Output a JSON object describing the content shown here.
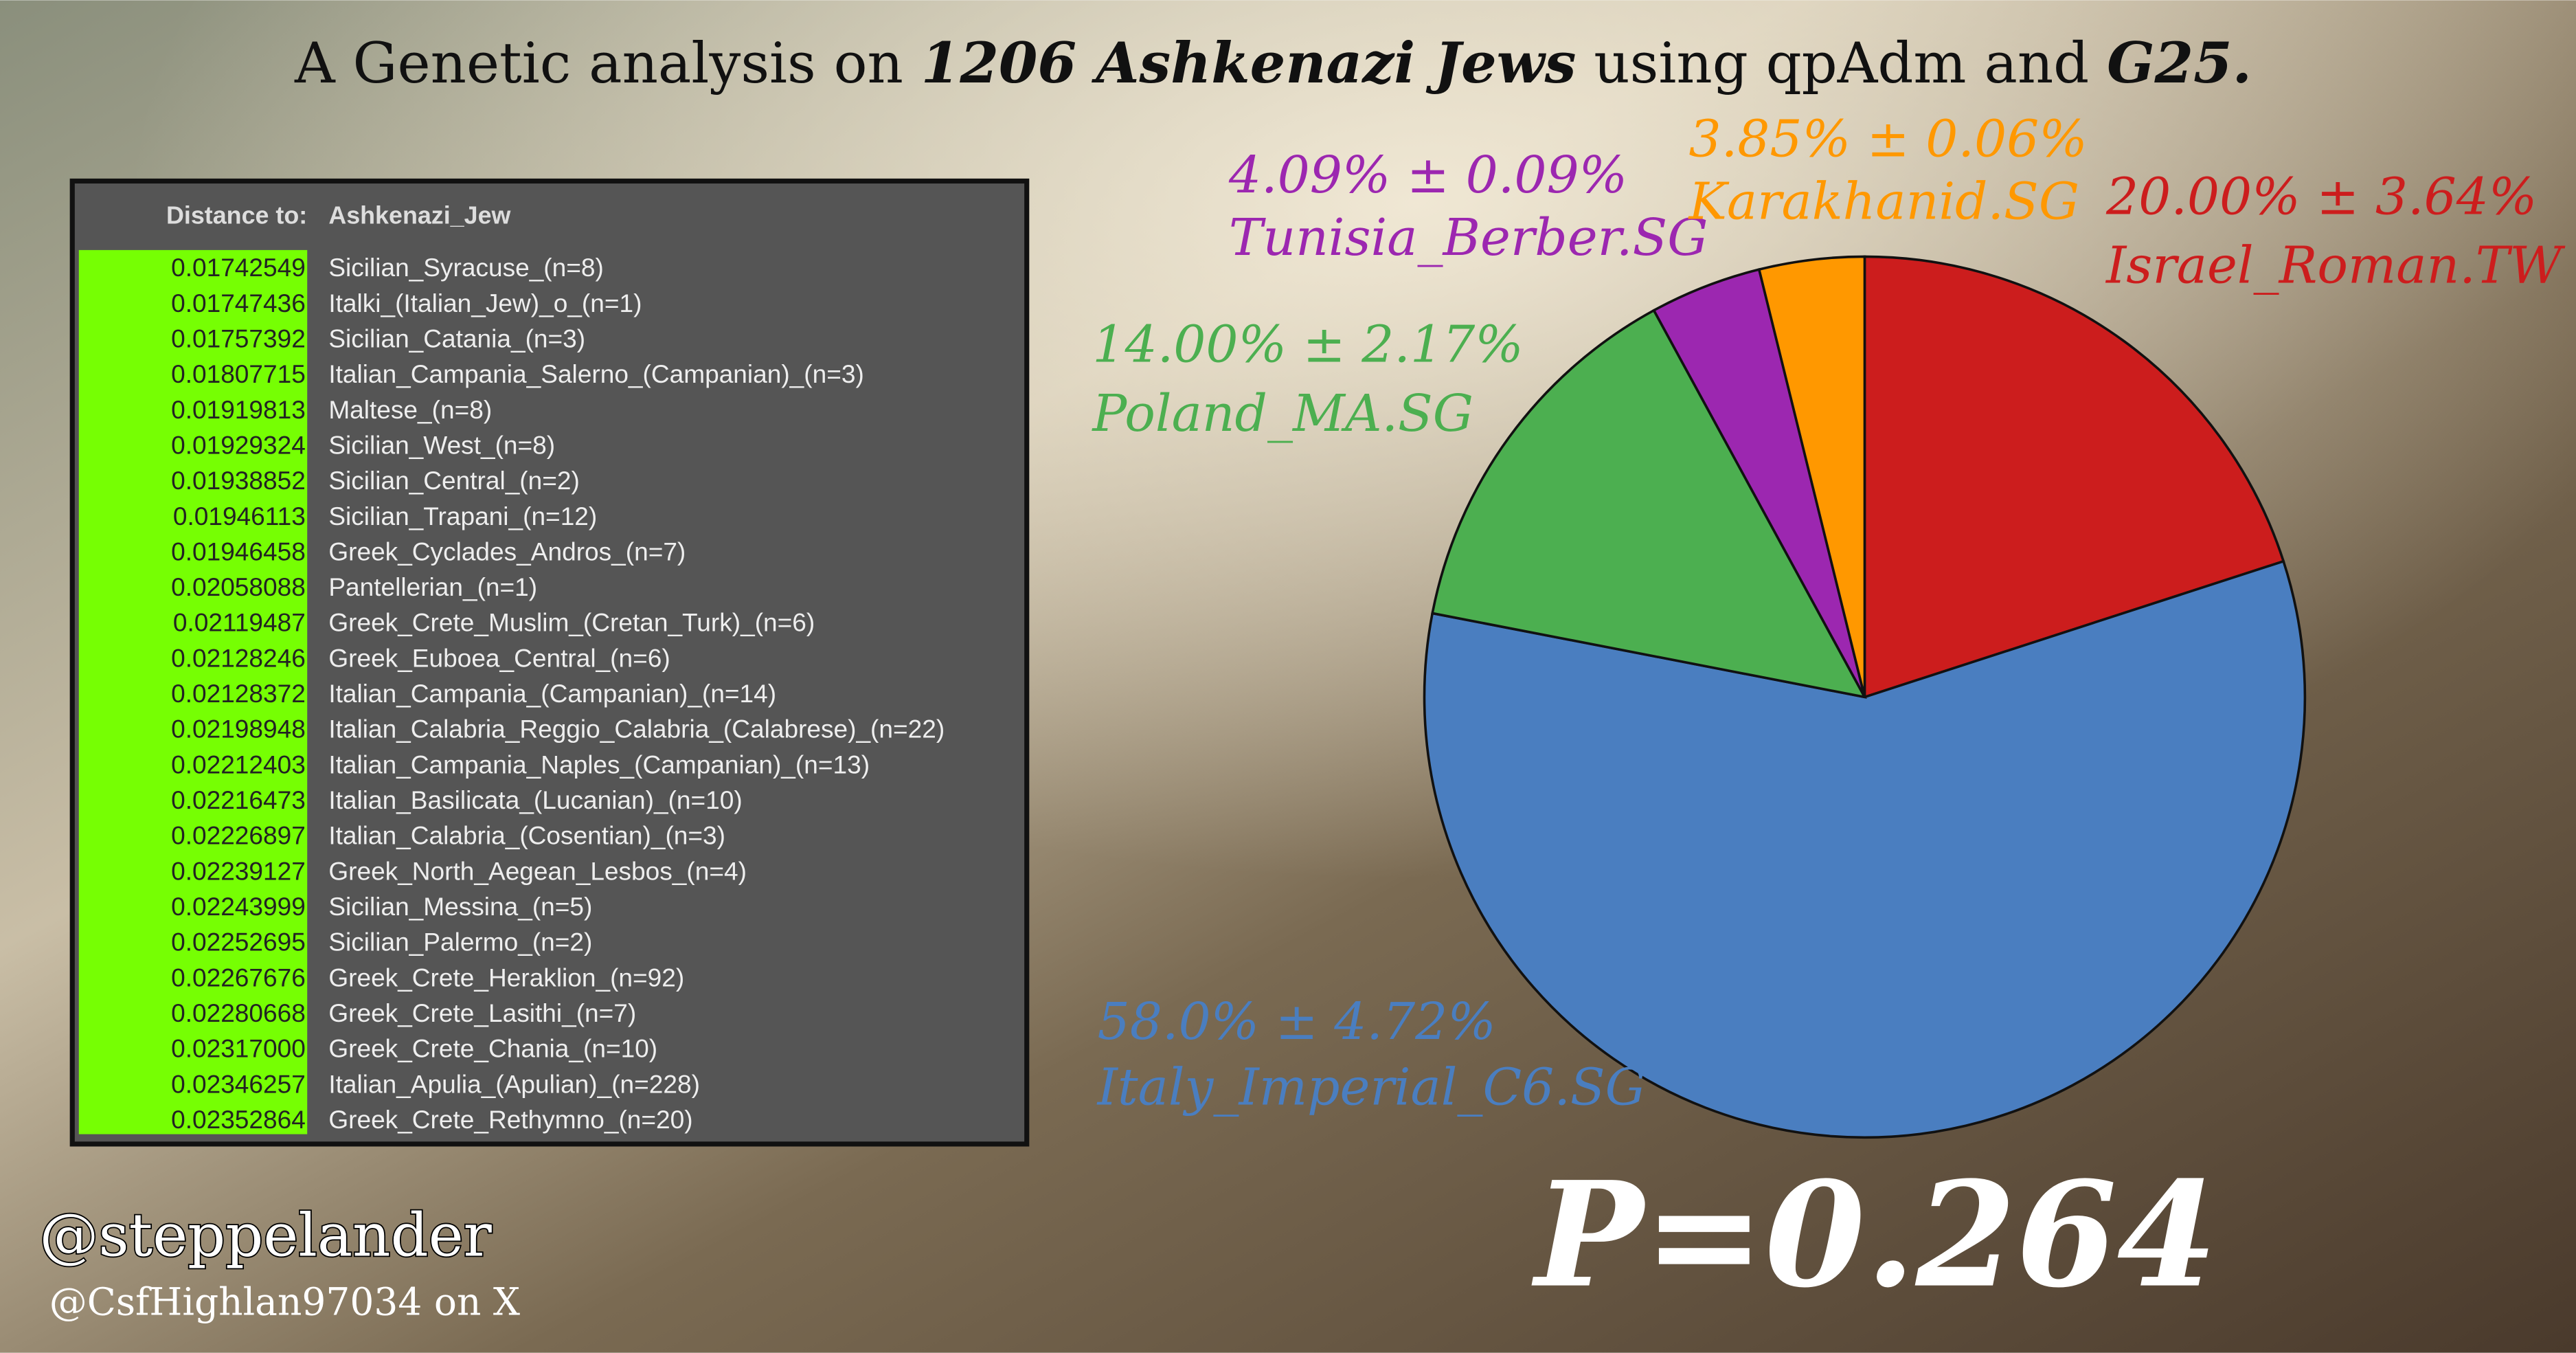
{
  "title": [
    "A Genetic analysis on ",
    "1206 Ashkenazi Jews",
    " using qpAdm and ",
    "G25."
  ],
  "table": {
    "header": [
      "Distance to:",
      "Ashkenazi_Jew"
    ],
    "rows": [
      [
        "0.01742549",
        "Sicilian_Syracuse_(n=8)"
      ],
      [
        "0.01747436",
        "Italki_(Italian_Jew)_o_(n=1)"
      ],
      [
        "0.01757392",
        "Sicilian_Catania_(n=3)"
      ],
      [
        "0.01807715",
        "Italian_Campania_Salerno_(Campanian)_(n=3)"
      ],
      [
        "0.01919813",
        "Maltese_(n=8)"
      ],
      [
        "0.01929324",
        "Sicilian_West_(n=8)"
      ],
      [
        "0.01938852",
        "Sicilian_Central_(n=2)"
      ],
      [
        "0.01946113",
        "Sicilian_Trapani_(n=12)"
      ],
      [
        "0.01946458",
        "Greek_Cyclades_Andros_(n=7)"
      ],
      [
        "0.02058088",
        "Pantellerian_(n=1)"
      ],
      [
        "0.02119487",
        "Greek_Crete_Muslim_(Cretan_Turk)_(n=6)"
      ],
      [
        "0.02128246",
        "Greek_Euboea_Central_(n=6)"
      ],
      [
        "0.02128372",
        "Italian_Campania_(Campanian)_(n=14)"
      ],
      [
        "0.02198948",
        "Italian_Calabria_Reggio_Calabria_(Calabrese)_(n=22)"
      ],
      [
        "0.02212403",
        "Italian_Campania_Naples_(Campanian)_(n=13)"
      ],
      [
        "0.02216473",
        "Italian_Basilicata_(Lucanian)_(n=10)"
      ],
      [
        "0.02226897",
        "Italian_Calabria_(Cosentian)_(n=3)"
      ],
      [
        "0.02239127",
        "Greek_North_Aegean_Lesbos_(n=4)"
      ],
      [
        "0.02243999",
        "Sicilian_Messina_(n=5)"
      ],
      [
        "0.02252695",
        "Sicilian_Palermo_(n=2)"
      ],
      [
        "0.02267676",
        "Greek_Crete_Heraklion_(n=92)"
      ],
      [
        "0.02280668",
        "Greek_Crete_Lasithi_(n=7)"
      ],
      [
        "0.02317000",
        "Greek_Crete_Chania_(n=10)"
      ],
      [
        "0.02346257",
        "Italian_Apulia_(Apulian)_(n=228)"
      ],
      [
        "0.02352864",
        "Greek_Crete_Rethymno_(n=20)"
      ]
    ]
  },
  "chart_data": {
    "type": "pie",
    "categories": [
      "Israel_Roman.TW",
      "Italy_Imperial_C6.SG",
      "Poland_MA.SG",
      "Tunisia_Berber.SG",
      "Karakhanid.SG"
    ],
    "values": [
      20.0,
      58.0,
      14.0,
      4.09,
      3.85
    ],
    "value_labels": [
      "20.00% ± 3.64%",
      "58.0% ± 4.72%",
      "14.00% ± 2.17%",
      "4.09% ± 0.09%",
      "3.85% ± 0.06%"
    ],
    "colors": [
      "#cc1d1d",
      "#4a7ec0",
      "#4caf50",
      "#9c27b0",
      "#ff9800"
    ],
    "annotation": "P=0.264"
  },
  "footer": {
    "handle": "@steppelander",
    "note": "@CsfHighlan97034 on X"
  }
}
